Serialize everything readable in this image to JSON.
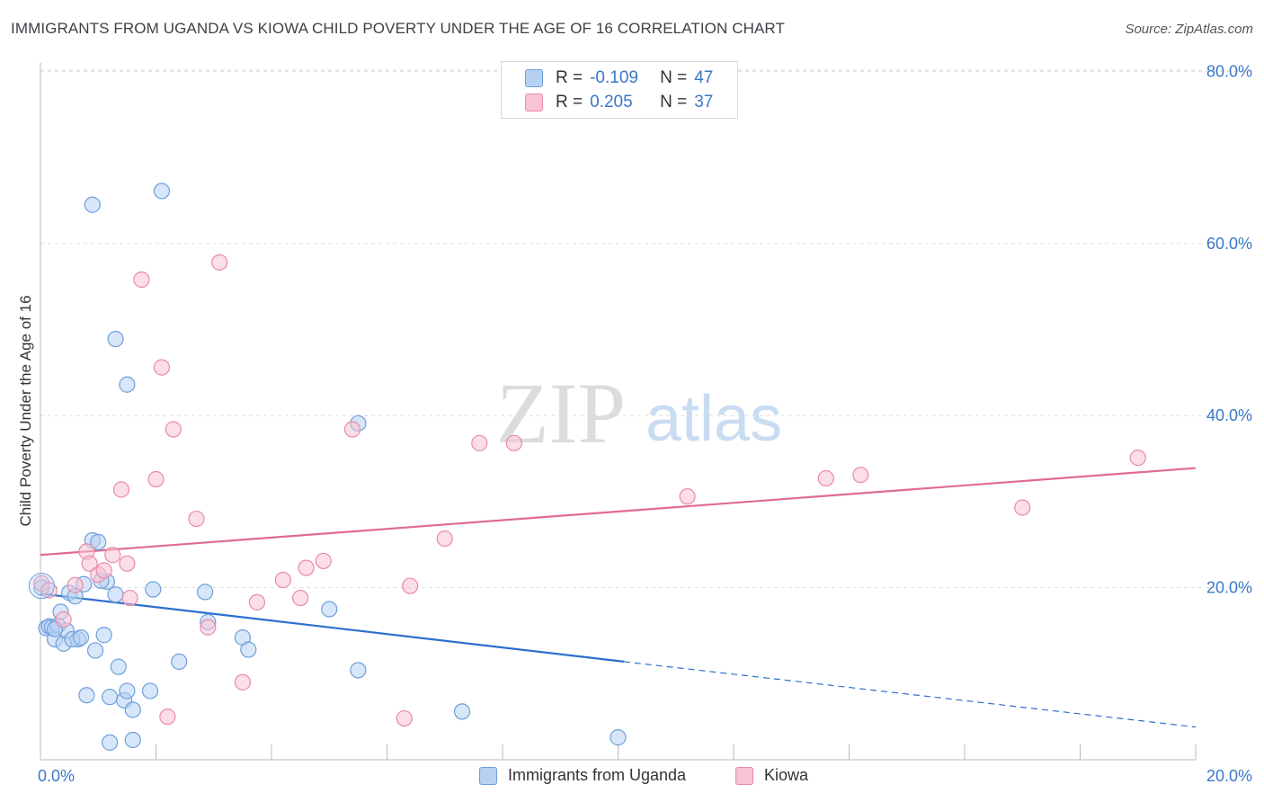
{
  "header": {
    "title": "IMMIGRANTS FROM UGANDA VS KIOWA CHILD POVERTY UNDER THE AGE OF 16 CORRELATION CHART",
    "source": "Source: ZipAtlas.com"
  },
  "watermark": {
    "zip": "ZIP",
    "atlas": "atlas"
  },
  "legend_top": [
    {
      "r_label": "R =",
      "r_value": "-0.109",
      "n_label": "N =",
      "n_value": "47"
    },
    {
      "r_label": "R =",
      "r_value": "0.205",
      "n_label": "N =",
      "n_value": "37"
    }
  ],
  "legend_bottom": [
    {
      "label": "Immigrants from Uganda"
    },
    {
      "label": "Kiowa"
    }
  ],
  "colors": {
    "blue_fill": "#b7d1f2",
    "blue_stroke": "#6f9fdc",
    "blue_line": "#2b6fcf",
    "pink_fill": "#f8c3d3",
    "pink_stroke": "#e98aa8",
    "pink_line": "#e06b92",
    "axis_text": "#3a78c9",
    "grid": "#dddddd"
  },
  "chart_data": {
    "type": "scatter",
    "title": "IMMIGRANTS FROM UGANDA VS KIOWA CHILD POVERTY UNDER THE AGE OF 16 CORRELATION CHART",
    "xlabel": "",
    "ylabel": "Child Poverty Under the Age of 16",
    "xlim": [
      0,
      20
    ],
    "ylim": [
      0,
      85
    ],
    "x_tick_labels": [
      "0.0%",
      "20.0%"
    ],
    "y_ticks": [
      20,
      40,
      60,
      80
    ],
    "y_tick_labels": [
      "20.0%",
      "40.0%",
      "60.0%",
      "80.0%"
    ],
    "grid": true,
    "series": [
      {
        "name": "Immigrants from Uganda",
        "color": "#6f9fdc",
        "points": [
          [
            0.02,
            20.0
          ],
          [
            0.1,
            15.3
          ],
          [
            0.15,
            15.5
          ],
          [
            0.2,
            15.4
          ],
          [
            0.25,
            14.0
          ],
          [
            0.3,
            15.6
          ],
          [
            0.35,
            17.2
          ],
          [
            0.4,
            13.5
          ],
          [
            0.5,
            19.4
          ],
          [
            0.6,
            19.0
          ],
          [
            0.65,
            14.0
          ],
          [
            0.75,
            20.4
          ],
          [
            0.8,
            7.5
          ],
          [
            0.9,
            25.5
          ],
          [
            0.95,
            12.7
          ],
          [
            1.0,
            25.3
          ],
          [
            1.1,
            14.5
          ],
          [
            1.15,
            20.7
          ],
          [
            1.2,
            7.3
          ],
          [
            1.3,
            19.2
          ],
          [
            1.35,
            10.8
          ],
          [
            1.45,
            6.9
          ],
          [
            1.5,
            8.0
          ],
          [
            1.6,
            5.8
          ],
          [
            1.9,
            8.0
          ],
          [
            1.95,
            19.8
          ],
          [
            2.4,
            11.4
          ],
          [
            2.85,
            19.5
          ],
          [
            2.9,
            16.0
          ],
          [
            3.5,
            14.2
          ],
          [
            3.6,
            12.8
          ],
          [
            5.0,
            17.5
          ],
          [
            5.5,
            10.4
          ],
          [
            7.3,
            5.6
          ],
          [
            1.2,
            2.0
          ],
          [
            1.6,
            2.3
          ],
          [
            10.0,
            2.6
          ],
          [
            0.9,
            64.5
          ],
          [
            2.1,
            66.1
          ],
          [
            1.3,
            48.9
          ],
          [
            1.5,
            43.6
          ],
          [
            5.5,
            39.1
          ],
          [
            0.45,
            15.0
          ],
          [
            0.55,
            14.0
          ],
          [
            0.7,
            14.2
          ],
          [
            1.05,
            20.8
          ],
          [
            0.25,
            15.2
          ]
        ]
      },
      {
        "name": "Kiowa",
        "color": "#e98aa8",
        "points": [
          [
            0.02,
            20.5
          ],
          [
            0.15,
            19.7
          ],
          [
            0.4,
            16.3
          ],
          [
            0.6,
            20.3
          ],
          [
            0.8,
            24.2
          ],
          [
            0.85,
            22.8
          ],
          [
            1.0,
            21.5
          ],
          [
            1.1,
            22.0
          ],
          [
            1.25,
            23.8
          ],
          [
            1.5,
            22.8
          ],
          [
            1.55,
            18.8
          ],
          [
            1.4,
            31.4
          ],
          [
            1.75,
            55.8
          ],
          [
            2.0,
            32.6
          ],
          [
            2.1,
            45.6
          ],
          [
            2.3,
            38.4
          ],
          [
            2.7,
            28.0
          ],
          [
            2.9,
            15.4
          ],
          [
            3.1,
            57.8
          ],
          [
            3.5,
            9.0
          ],
          [
            3.75,
            18.3
          ],
          [
            4.2,
            20.9
          ],
          [
            4.5,
            18.8
          ],
          [
            4.6,
            22.3
          ],
          [
            4.9,
            23.1
          ],
          [
            5.4,
            38.4
          ],
          [
            6.3,
            4.8
          ],
          [
            6.4,
            20.2
          ],
          [
            7.0,
            25.7
          ],
          [
            7.6,
            36.8
          ],
          [
            8.2,
            36.8
          ],
          [
            11.2,
            30.6
          ],
          [
            13.6,
            32.7
          ],
          [
            14.2,
            33.1
          ],
          [
            17.0,
            29.3
          ],
          [
            19.0,
            35.1
          ],
          [
            2.2,
            5.0
          ]
        ]
      }
    ],
    "trend_lines": [
      {
        "series": "Immigrants from Uganda",
        "x_solid": [
          0,
          10.1
        ],
        "y_solid": [
          19.3,
          11.4
        ],
        "x_dashed": [
          10.1,
          20
        ],
        "y_dashed": [
          11.4,
          3.8
        ]
      },
      {
        "series": "Kiowa",
        "x_solid": [
          0,
          20
        ],
        "y_solid": [
          23.8,
          33.9
        ]
      }
    ]
  }
}
